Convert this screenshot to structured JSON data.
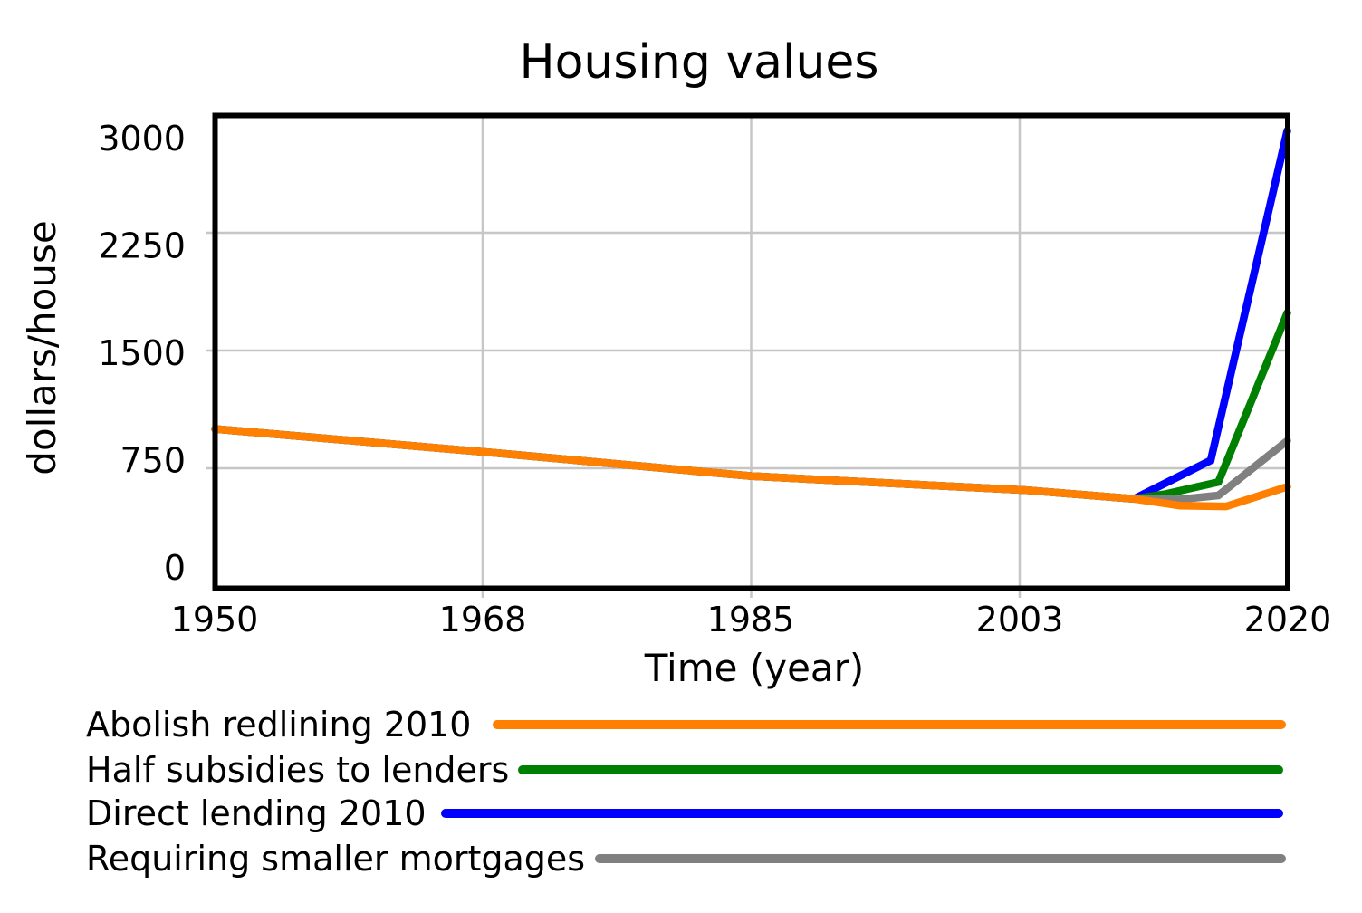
{
  "chart": {
    "title": "Housing values",
    "xlabel": "Time (year)",
    "ylabel": "dollars/house"
  },
  "chart_data": {
    "type": "line",
    "title": "Housing values",
    "xlabel": "Time (year)",
    "ylabel": "dollars/house",
    "xlim": [
      1950,
      2020
    ],
    "ylim": [
      0,
      3000
    ],
    "xticks": [
      1950,
      1968,
      1985,
      2003,
      2020
    ],
    "yticks": [
      0,
      750,
      1500,
      2250,
      3000
    ],
    "xtick_labels": [
      "1950",
      "1968",
      "1985",
      "2003",
      "2020"
    ],
    "ytick_labels": [
      "0",
      "750",
      "1500",
      "2250",
      "3000"
    ],
    "grid": true,
    "legend_position": "below-left",
    "series": [
      {
        "name": "Abolish redlining 2010",
        "color": "#ff8000",
        "points": [
          [
            1950,
            1000
          ],
          [
            1968,
            850
          ],
          [
            1985,
            700
          ],
          [
            2003,
            610
          ],
          [
            2010,
            555
          ],
          [
            2013,
            512
          ],
          [
            2016,
            507
          ],
          [
            2020,
            632
          ]
        ]
      },
      {
        "name": "Half subsidies to lenders",
        "color": "#008000",
        "points": [
          [
            1950,
            1000
          ],
          [
            1968,
            850
          ],
          [
            1985,
            700
          ],
          [
            2003,
            610
          ],
          [
            2010,
            555
          ],
          [
            2012,
            585
          ],
          [
            2015.5,
            662
          ],
          [
            2020,
            1740
          ]
        ]
      },
      {
        "name": "Direct lending 2010",
        "color": "#0000ff",
        "points": [
          [
            1950,
            1000
          ],
          [
            1968,
            850
          ],
          [
            1985,
            700
          ],
          [
            2003,
            610
          ],
          [
            2010,
            555
          ],
          [
            2015,
            800
          ],
          [
            2020,
            2900
          ]
        ]
      },
      {
        "name": "Requiring smaller mortgages",
        "color": "#808080",
        "points": [
          [
            1950,
            1000
          ],
          [
            1968,
            850
          ],
          [
            1985,
            700
          ],
          [
            2003,
            610
          ],
          [
            2010,
            555
          ],
          [
            2013,
            552
          ],
          [
            2015.5,
            577
          ],
          [
            2020,
            925
          ]
        ]
      }
    ]
  }
}
